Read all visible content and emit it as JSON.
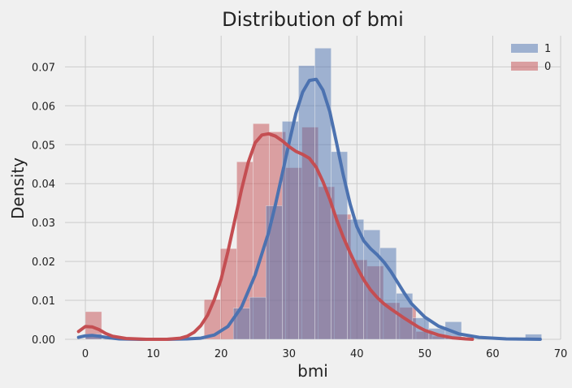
{
  "colors": {
    "background": "#f0f0f0",
    "grid": "#cbcbcb",
    "series_1": "#4c72b0",
    "series_0": "#c44e52"
  },
  "chart_data": {
    "type": "histogram",
    "title": "Distribution of bmi",
    "xlabel": "bmi",
    "ylabel": "Density",
    "xlim": [
      -3,
      70
    ],
    "ylim": [
      0,
      0.078
    ],
    "x_ticks": [
      0,
      10,
      20,
      30,
      40,
      50,
      60,
      70
    ],
    "y_ticks": [
      0.0,
      0.01,
      0.02,
      0.03,
      0.04,
      0.05,
      0.06,
      0.07
    ],
    "x_tick_labels": [
      "0",
      "10",
      "20",
      "30",
      "40",
      "50",
      "60",
      "70"
    ],
    "y_tick_labels": [
      "0.00",
      "0.01",
      "0.02",
      "0.03",
      "0.04",
      "0.05",
      "0.06",
      "0.07"
    ],
    "grid": true,
    "legend_position": "top-right",
    "series": [
      {
        "name": "1",
        "color": "#4c72b0",
        "hist": {
          "bins": [
            {
              "x0": 0.0,
              "x1": 2.4,
              "density": 0.0013
            },
            {
              "x0": 21.8,
              "x1": 24.2,
              "density": 0.008
            },
            {
              "x0": 24.2,
              "x1": 26.6,
              "density": 0.0108
            },
            {
              "x0": 26.6,
              "x1": 29.0,
              "density": 0.0343
            },
            {
              "x0": 29.0,
              "x1": 31.4,
              "density": 0.056
            },
            {
              "x0": 31.4,
              "x1": 33.8,
              "density": 0.0703
            },
            {
              "x0": 33.8,
              "x1": 36.2,
              "density": 0.0748
            },
            {
              "x0": 36.2,
              "x1": 38.6,
              "density": 0.0482
            },
            {
              "x0": 38.6,
              "x1": 41.0,
              "density": 0.0308
            },
            {
              "x0": 41.0,
              "x1": 43.4,
              "density": 0.0281
            },
            {
              "x0": 43.4,
              "x1": 45.8,
              "density": 0.0235
            },
            {
              "x0": 45.8,
              "x1": 48.2,
              "density": 0.0118
            },
            {
              "x0": 48.2,
              "x1": 50.6,
              "density": 0.0055
            },
            {
              "x0": 50.6,
              "x1": 53.0,
              "density": 0.0028
            },
            {
              "x0": 53.0,
              "x1": 55.4,
              "density": 0.0045
            },
            {
              "x0": 64.8,
              "x1": 67.2,
              "density": 0.0013
            }
          ]
        },
        "kde": {
          "x": [
            -1,
            0,
            1,
            2,
            3,
            5,
            8,
            12,
            15,
            17,
            19,
            21,
            23,
            25,
            27,
            28,
            29,
            30,
            31,
            32,
            33,
            34,
            35,
            36,
            37,
            38,
            39,
            40,
            41,
            42,
            43,
            44,
            45,
            46,
            47,
            48,
            50,
            52,
            55,
            58,
            62,
            67
          ],
          "y": [
            0.0005,
            0.0009,
            0.001,
            0.0008,
            0.0005,
            0.0001,
            0.0,
            0.0,
            0.0001,
            0.0003,
            0.0011,
            0.0033,
            0.0083,
            0.0165,
            0.0275,
            0.0346,
            0.0425,
            0.0505,
            0.058,
            0.0635,
            0.0665,
            0.0668,
            0.064,
            0.0585,
            0.0505,
            0.0421,
            0.0347,
            0.0289,
            0.0253,
            0.0233,
            0.0217,
            0.0198,
            0.0174,
            0.0146,
            0.0118,
            0.0092,
            0.0057,
            0.0034,
            0.0014,
            0.0005,
            0.0001,
            0.0
          ]
        }
      },
      {
        "name": "0",
        "color": "#c44e52",
        "hist": {
          "bins": [
            {
              "x0": 0.0,
              "x1": 2.4,
              "density": 0.0071
            },
            {
              "x0": 17.5,
              "x1": 19.9,
              "density": 0.0102
            },
            {
              "x0": 19.9,
              "x1": 22.3,
              "density": 0.0233
            },
            {
              "x0": 22.3,
              "x1": 24.7,
              "density": 0.0456
            },
            {
              "x0": 24.7,
              "x1": 27.1,
              "density": 0.0554
            },
            {
              "x0": 27.1,
              "x1": 29.5,
              "density": 0.0533
            },
            {
              "x0": 29.5,
              "x1": 31.9,
              "density": 0.0441
            },
            {
              "x0": 31.9,
              "x1": 34.3,
              "density": 0.0545
            },
            {
              "x0": 34.3,
              "x1": 36.7,
              "density": 0.0392
            },
            {
              "x0": 36.7,
              "x1": 39.1,
              "density": 0.0321
            },
            {
              "x0": 39.1,
              "x1": 41.5,
              "density": 0.0204
            },
            {
              "x0": 41.5,
              "x1": 43.9,
              "density": 0.0188
            },
            {
              "x0": 43.9,
              "x1": 46.3,
              "density": 0.0094
            },
            {
              "x0": 46.3,
              "x1": 48.7,
              "density": 0.0082
            },
            {
              "x0": 48.7,
              "x1": 51.1,
              "density": 0.002
            },
            {
              "x0": 51.1,
              "x1": 53.5,
              "density": 0.0008
            },
            {
              "x0": 53.5,
              "x1": 55.9,
              "density": 0.0006
            }
          ]
        },
        "kde": {
          "x": [
            -1,
            0,
            1,
            2,
            3,
            4,
            6,
            9,
            12,
            14,
            15,
            16,
            17,
            18,
            19,
            20,
            21,
            22,
            23,
            24,
            25,
            26,
            27,
            28,
            29,
            30,
            31,
            32,
            33,
            34,
            35,
            36,
            37,
            38,
            39,
            40,
            41,
            42,
            43,
            44,
            45,
            46,
            47,
            48,
            49,
            50,
            52,
            54,
            56,
            57
          ],
          "y": [
            0.002,
            0.0033,
            0.0032,
            0.0025,
            0.0015,
            0.0008,
            0.0002,
            0.0,
            0.0,
            0.0003,
            0.0008,
            0.0018,
            0.0035,
            0.0062,
            0.0102,
            0.0155,
            0.0225,
            0.0305,
            0.0385,
            0.0455,
            0.0505,
            0.0525,
            0.0528,
            0.0522,
            0.051,
            0.0495,
            0.0483,
            0.0475,
            0.0465,
            0.0442,
            0.0405,
            0.036,
            0.0308,
            0.0262,
            0.0222,
            0.0185,
            0.0153,
            0.0127,
            0.0107,
            0.0091,
            0.0078,
            0.0066,
            0.0054,
            0.0043,
            0.0032,
            0.0023,
            0.0011,
            0.0004,
            0.0001,
            0.0
          ]
        }
      }
    ]
  }
}
